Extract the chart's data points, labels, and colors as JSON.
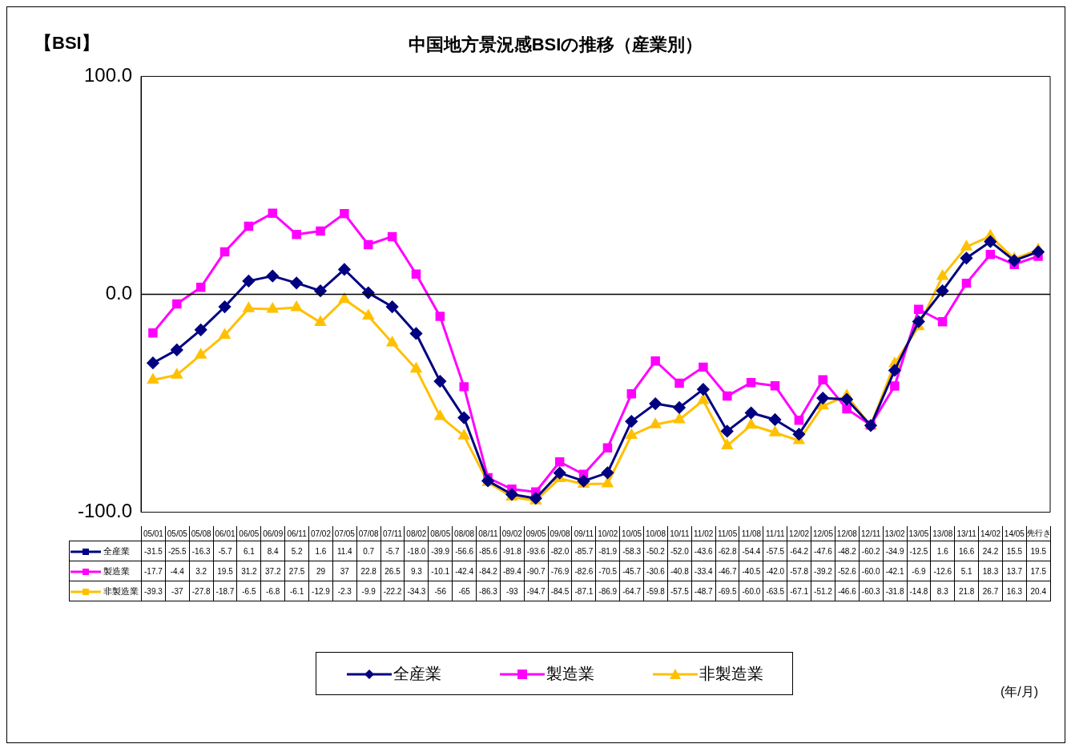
{
  "chart_data": {
    "type": "line",
    "title": "中国地方景況感BSIの推移（産業別）",
    "categories": [
      "05/01",
      "05/05",
      "05/08",
      "06/01",
      "06/05",
      "06/09",
      "06/11",
      "07/02",
      "07/05",
      "07/08",
      "07/11",
      "08/02",
      "08/05",
      "08/08",
      "08/11",
      "09/02",
      "09/05",
      "09/08",
      "09/11",
      "10/02",
      "10/05",
      "10/08",
      "10/11",
      "11/02",
      "11/05",
      "11/08",
      "11/11",
      "12/02",
      "12/05",
      "12/08",
      "12/11",
      "13/02",
      "13/05",
      "13/08",
      "13/11",
      "14/02",
      "14/05",
      "先行き"
    ],
    "series": [
      {
        "name": "全産業",
        "color": "#000080",
        "marker": "diamond",
        "values": [
          -31.5,
          -25.5,
          -16.3,
          -5.7,
          6.1,
          8.4,
          5.2,
          1.6,
          11.4,
          0.7,
          -5.7,
          -18.0,
          -39.9,
          -56.6,
          -85.6,
          -91.8,
          -93.6,
          -82.0,
          -85.7,
          -81.9,
          -58.3,
          -50.2,
          -52.0,
          -43.6,
          -62.8,
          -54.4,
          -57.5,
          -64.2,
          -47.6,
          -48.2,
          -60.2,
          -34.9,
          -12.5,
          1.6,
          16.6,
          24.2,
          15.5,
          19.5
        ],
        "value_labels": [
          "-31.5",
          "-25.5",
          "-16.3",
          "-5.7",
          "6.1",
          "8.4",
          "5.2",
          "1.6",
          "11.4",
          "0.7",
          "-5.7",
          "-18.0",
          "-39.9",
          "-56.6",
          "-85.6",
          "-91.8",
          "-93.6",
          "-82.0",
          "-85.7",
          "-81.9",
          "-58.3",
          "-50.2",
          "-52.0",
          "-43.6",
          "-62.8",
          "-54.4",
          "-57.5",
          "-64.2",
          "-47.6",
          "-48.2",
          "-60.2",
          "-34.9",
          "-12.5",
          "1.6",
          "16.6",
          "24.2",
          "15.5",
          "19.5"
        ]
      },
      {
        "name": "製造業",
        "color": "#ff00ff",
        "marker": "square",
        "values": [
          -17.7,
          -4.4,
          3.2,
          19.5,
          31.2,
          37.2,
          27.5,
          29,
          37,
          22.8,
          26.5,
          9.3,
          -10.1,
          -42.4,
          -84.2,
          -89.4,
          -90.7,
          -76.9,
          -82.6,
          -70.5,
          -45.7,
          -30.6,
          -40.8,
          -33.4,
          -46.7,
          -40.5,
          -42.0,
          -57.8,
          -39.2,
          -52.6,
          -60.0,
          -42.1,
          -6.9,
          -12.6,
          5.1,
          18.3,
          13.7,
          17.5
        ],
        "value_labels": [
          "-17.7",
          "-4.4",
          "3.2",
          "19.5",
          "31.2",
          "37.2",
          "27.5",
          "29",
          "37",
          "22.8",
          "26.5",
          "9.3",
          "-10.1",
          "-42.4",
          "-84.2",
          "-89.4",
          "-90.7",
          "-76.9",
          "-82.6",
          "-70.5",
          "-45.7",
          "-30.6",
          "-40.8",
          "-33.4",
          "-46.7",
          "-40.5",
          "-42.0",
          "-57.8",
          "-39.2",
          "-52.6",
          "-60.0",
          "-42.1",
          "-6.9",
          "-12.6",
          "5.1",
          "18.3",
          "13.7",
          "17.5"
        ]
      },
      {
        "name": "非製造業",
        "color": "#ffc000",
        "marker": "triangle",
        "values": [
          -39.3,
          -37,
          -27.8,
          -18.7,
          -6.5,
          -6.8,
          -6.1,
          -12.9,
          -2.3,
          -9.9,
          -22.2,
          -34.3,
          -56,
          -65,
          -86.3,
          -93,
          -94.7,
          -84.5,
          -87.1,
          -86.9,
          -64.7,
          -59.8,
          -57.5,
          -48.7,
          -69.5,
          -60.0,
          -63.5,
          -67.1,
          -51.2,
          -46.6,
          -60.3,
          -31.8,
          -14.8,
          8.3,
          21.8,
          26.7,
          16.3,
          20.4
        ],
        "value_labels": [
          "-39.3",
          "-37",
          "-27.8",
          "-18.7",
          "-6.5",
          "-6.8",
          "-6.1",
          "-12.9",
          "-2.3",
          "-9.9",
          "-22.2",
          "-34.3",
          "-56",
          "-65",
          "-86.3",
          "-93",
          "-94.7",
          "-84.5",
          "-87.1",
          "-86.9",
          "-64.7",
          "-59.8",
          "-57.5",
          "-48.7",
          "-69.5",
          "-60.0",
          "-63.5",
          "-67.1",
          "-51.2",
          "-46.6",
          "-60.3",
          "-31.8",
          "-14.8",
          "8.3",
          "21.8",
          "26.7",
          "16.3",
          "20.4"
        ]
      }
    ],
    "ylim": [
      -100,
      100
    ],
    "yticks": [
      {
        "value": -100,
        "label": "-100.0"
      },
      {
        "value": 0,
        "label": "0.0"
      },
      {
        "value": 100,
        "label": "100.0"
      }
    ],
    "ref_lines": [
      {
        "axis": "y",
        "value": 0,
        "color": "#000000"
      }
    ],
    "legend": "bottom",
    "annotations": [
      "【BSI】",
      "(年/月)"
    ]
  }
}
